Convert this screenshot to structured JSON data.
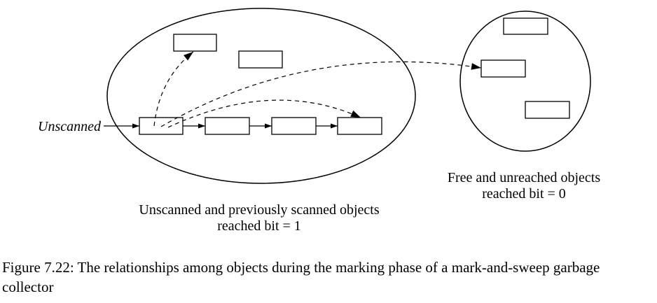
{
  "diagram": {
    "unscanned_label": "Unscanned",
    "left_region": {
      "line1": "Unscanned and previously scanned objects",
      "line2": "reached bit = 1"
    },
    "right_region": {
      "line1": "Free and unreached objects",
      "line2": "reached bit = 0"
    }
  },
  "caption": "Figure 7.22: The relationships among objects during the marking phase of a mark-and-sweep garbage collector"
}
